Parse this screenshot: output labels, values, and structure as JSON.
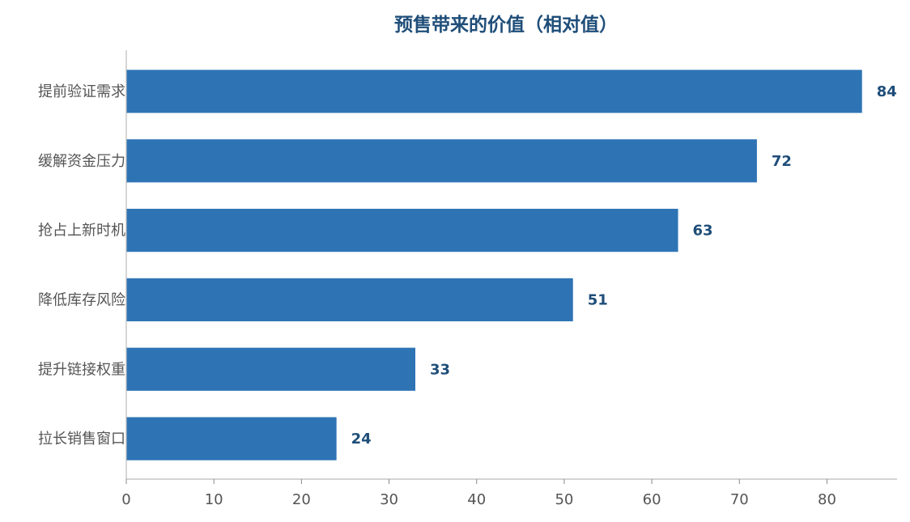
{
  "chart_data": {
    "type": "bar",
    "orientation": "horizontal",
    "title": "预售带来的价值（相对值）",
    "xlabel": "",
    "ylabel": "",
    "categories": [
      "拉长销售窗口",
      "提升链接权重",
      "降低库存风险",
      "抢占上新时机",
      "缓解资金压力",
      "提前验证需求"
    ],
    "values": [
      24,
      33,
      51,
      63,
      72,
      84
    ],
    "xlim": [
      0,
      88
    ],
    "xticks": [
      0,
      10,
      20,
      30,
      40,
      50,
      60,
      70,
      80
    ],
    "grid": false,
    "legend": "none",
    "bar_color": "#2e74b5",
    "label_color": "#1f4e79"
  }
}
